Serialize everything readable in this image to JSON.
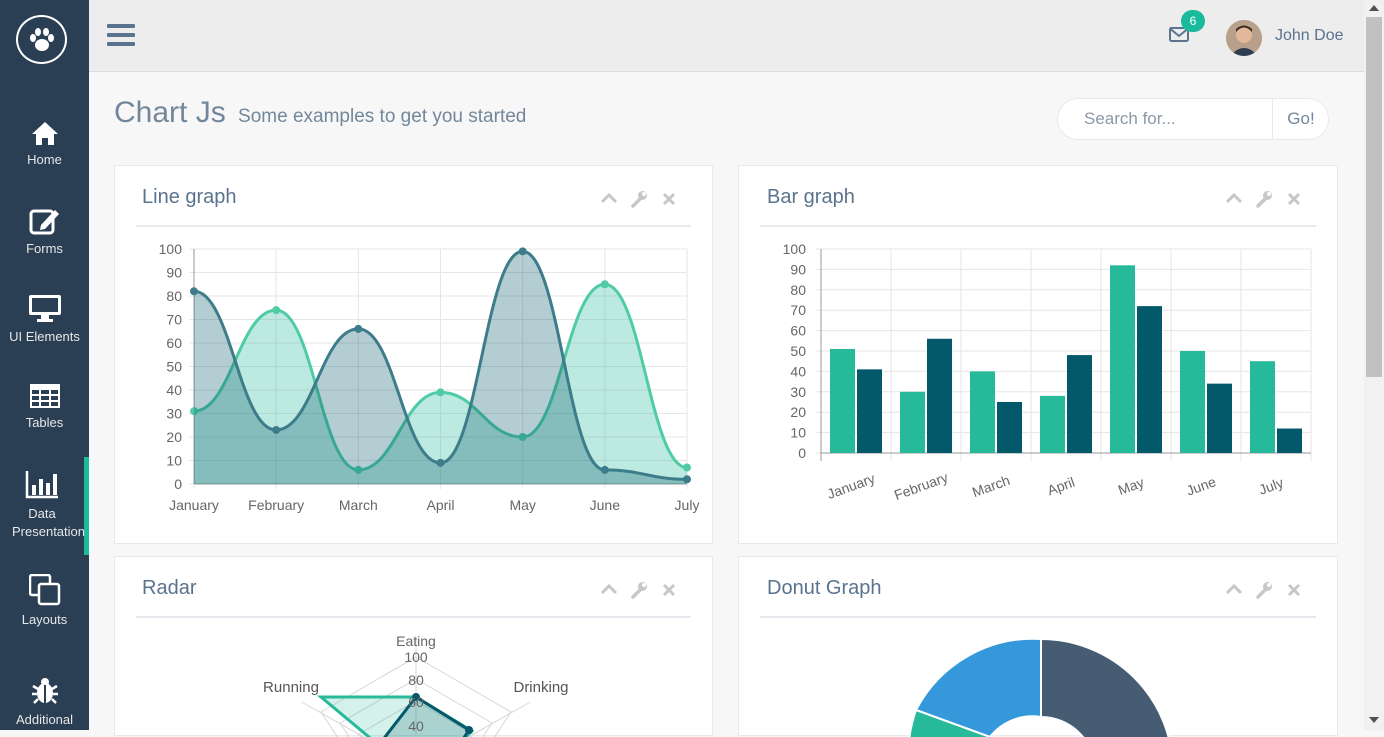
{
  "sidebar": {
    "logo_icon": "paw-icon",
    "items": [
      {
        "label": "Home",
        "icon": "home-icon"
      },
      {
        "label": "Forms",
        "icon": "edit-icon"
      },
      {
        "label": "UI Elements",
        "icon": "desktop-icon"
      },
      {
        "label": "Tables",
        "icon": "table-icon"
      },
      {
        "label": "Data Presentation",
        "icon": "bar-chart-icon",
        "active": true
      },
      {
        "label": "Layouts",
        "icon": "clone-icon"
      },
      {
        "label": "Additional",
        "icon": "bug-icon"
      }
    ]
  },
  "topbar": {
    "mail_count": "6",
    "user_name": "John Doe"
  },
  "page": {
    "title": "Chart Js",
    "subtitle": "Some examples to get you started"
  },
  "search": {
    "placeholder": "Search for...",
    "button": "Go!"
  },
  "panels": {
    "line": {
      "title": "Line graph"
    },
    "bar": {
      "title": "Bar graph"
    },
    "radar": {
      "title": "Radar"
    },
    "donut": {
      "title": "Donut Graph"
    }
  },
  "colors": {
    "sidebar": "#2a3f54",
    "accent": "#1abb9c",
    "series_light": "#26b99a",
    "series_dark": "#03586a",
    "donut_dark": "#455c73",
    "donut_blue": "#3498db"
  },
  "chart_data": [
    {
      "type": "line",
      "title": "Line graph",
      "categories": [
        "January",
        "February",
        "March",
        "April",
        "May",
        "June",
        "July"
      ],
      "ylim": [
        0,
        100
      ],
      "y_ticks": [
        "0",
        "10",
        "20",
        "30",
        "40",
        "50",
        "60",
        "70",
        "80",
        "90",
        "100"
      ],
      "grid": true,
      "series": [
        {
          "values": [
            31,
            74,
            6,
            39,
            20,
            85,
            7
          ]
        },
        {
          "values": [
            82,
            23,
            66,
            9,
            99,
            6,
            2
          ]
        }
      ]
    },
    {
      "type": "bar",
      "title": "Bar graph",
      "categories": [
        "January",
        "February",
        "March",
        "April",
        "May",
        "June",
        "July"
      ],
      "ylim": [
        0,
        100
      ],
      "y_ticks": [
        "0",
        "10",
        "20",
        "30",
        "40",
        "50",
        "60",
        "70",
        "80",
        "90",
        "100"
      ],
      "grid": true,
      "series": [
        {
          "values": [
            51,
            30,
            40,
            28,
            92,
            50,
            45
          ]
        },
        {
          "values": [
            41,
            56,
            25,
            48,
            72,
            34,
            12
          ]
        }
      ]
    },
    {
      "type": "radar",
      "title": "Radar",
      "axes": [
        "Eating",
        "Drinking",
        "Running"
      ],
      "r_ticks": [
        "40",
        "60",
        "80",
        "100"
      ]
    },
    {
      "type": "pie",
      "title": "Donut Graph",
      "visible_slices": [
        "#455c73",
        "#3498db",
        "#26b99a"
      ]
    }
  ]
}
